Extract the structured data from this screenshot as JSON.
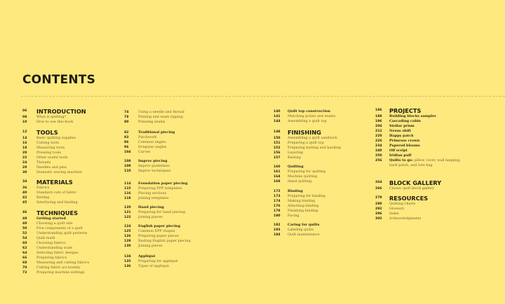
{
  "title": "CONTENTS",
  "colors": {
    "background": "#fde97d",
    "text": "#1f1c14",
    "entry": "#6e5d36"
  },
  "columns": [
    [
      {
        "heading": {
          "page": "06",
          "label": "INTRODUCTION"
        },
        "entries": [
          {
            "page": "08",
            "label": "What is quilting?"
          },
          {
            "page": "10",
            "label": "How to use this book"
          }
        ]
      },
      {
        "heading": {
          "page": "12",
          "label": "TOOLS"
        },
        "entries": [
          {
            "page": "14",
            "label": "Basic quilting supplies"
          },
          {
            "page": "16",
            "label": "Cutting tools"
          },
          {
            "page": "18",
            "label": "Measuring tools"
          },
          {
            "page": "20",
            "label": "Pressing tools"
          },
          {
            "page": "22",
            "label": "Other useful tools"
          },
          {
            "page": "24",
            "label": "Threads"
          },
          {
            "page": "28",
            "label": "Needles and pins"
          },
          {
            "page": "30",
            "label": "Domestic sewing machine"
          }
        ]
      },
      {
        "heading": {
          "page": "34",
          "label": "MATERIALS"
        },
        "entries": [
          {
            "page": "36",
            "label": "Fabrics"
          },
          {
            "page": "40",
            "label": "Standard cuts of fabric"
          },
          {
            "page": "42",
            "label": "Batting"
          },
          {
            "page": "45",
            "label": "Interfacing and binding"
          }
        ]
      },
      {
        "heading": {
          "page": "46",
          "label": "TECHNIQUES"
        },
        "entries": [
          {
            "page": "48",
            "label": "Getting started",
            "bold": true
          },
          {
            "page": "49",
            "label": "Choosing a quilt size"
          },
          {
            "page": "50",
            "label": "Five components of a quilt"
          },
          {
            "page": "52",
            "label": "Understanding quilt patterns"
          },
          {
            "page": "54",
            "label": "Quilt math"
          },
          {
            "page": "60",
            "label": "Choosing fabrics"
          },
          {
            "page": "62",
            "label": "Understanding scale"
          },
          {
            "page": "64",
            "label": "Selecting fabric designs"
          },
          {
            "page": "66",
            "label": "Preparing fabrics"
          },
          {
            "page": "68",
            "label": "Measuring and cutting fabrics"
          },
          {
            "page": "70",
            "label": "Cutting fabric accurately"
          },
          {
            "page": "72",
            "label": "Preparing machine settings"
          }
        ]
      }
    ],
    [
      {
        "entries": [
          {
            "page": "74",
            "label": "Using a needle and thread"
          },
          {
            "page": "78",
            "label": "Pinning and seam ripping"
          },
          {
            "page": "80",
            "label": "Pressing seams"
          }
        ]
      },
      {
        "entries": [
          {
            "page": "82",
            "label": "Traditional piecing",
            "bold": true
          },
          {
            "page": "83",
            "label": "Patchwork"
          },
          {
            "page": "86",
            "label": "Common angles"
          },
          {
            "page": "96",
            "label": "Irregular angles"
          },
          {
            "page": "104",
            "label": "Curves"
          }
        ]
      },
      {
        "entries": [
          {
            "page": "108",
            "label": "Improv piecing",
            "bold": true
          },
          {
            "page": "109",
            "label": "Improv guidelines"
          },
          {
            "page": "110",
            "label": "Improv techniques"
          }
        ]
      },
      {
        "entries": [
          {
            "page": "114",
            "label": "Foundation paper piecing",
            "bold": true
          },
          {
            "page": "115",
            "label": "Preparing FPP templates"
          },
          {
            "page": "116",
            "label": "Piecing sections"
          },
          {
            "page": "118",
            "label": "Joining templates"
          }
        ]
      },
      {
        "entries": [
          {
            "page": "120",
            "label": "Hand piecing",
            "bold": true
          },
          {
            "page": "121",
            "label": "Preparing for hand piecing"
          },
          {
            "page": "122",
            "label": "Joining pieces"
          }
        ]
      },
      {
        "entries": [
          {
            "page": "124",
            "label": "English paper piecing",
            "bold": true
          },
          {
            "page": "125",
            "label": "Common EPP shapes"
          },
          {
            "page": "126",
            "label": "Preparing paper pieces"
          },
          {
            "page": "128",
            "label": "Basting English paper piecing"
          },
          {
            "page": "130",
            "label": "Joining pieces"
          }
        ]
      },
      {
        "entries": [
          {
            "page": "134",
            "label": "Appliqué",
            "bold": true
          },
          {
            "page": "135",
            "label": "Preparing for appliqué"
          },
          {
            "page": "136",
            "label": "Types of appliqué"
          }
        ]
      }
    ],
    [
      {
        "entries": [
          {
            "page": "140",
            "label": "Quilt top construction",
            "bold": true
          },
          {
            "page": "141",
            "label": "Matching points and seams"
          },
          {
            "page": "144",
            "label": "Assembling a quilt top"
          }
        ]
      },
      {
        "heading": {
          "page": "148",
          "label": "FINISHING"
        },
        "entries": [
          {
            "page": "150",
            "label": "Assembling a quilt sandwich"
          },
          {
            "page": "151",
            "label": "Preparing a quilt top"
          },
          {
            "page": "152",
            "label": "Preparing batting and backing"
          },
          {
            "page": "156",
            "label": "Layering"
          },
          {
            "page": "157",
            "label": "Basting"
          }
        ]
      },
      {
        "entries": [
          {
            "page": "160",
            "label": "Quilting",
            "bold": true
          },
          {
            "page": "161",
            "label": "Preparing for quilting"
          },
          {
            "page": "164",
            "label": "Machine quilting"
          },
          {
            "page": "168",
            "label": "Hand quilting"
          }
        ]
      },
      {
        "entries": [
          {
            "page": "172",
            "label": "Binding",
            "bold": true
          },
          {
            "page": "173",
            "label": "Preparing for binding"
          },
          {
            "page": "174",
            "label": "Making binding"
          },
          {
            "page": "176",
            "label": "Attaching binding"
          },
          {
            "page": "178",
            "label": "Finishing binding"
          },
          {
            "page": "180",
            "label": "Facing"
          }
        ]
      },
      {
        "entries": [
          {
            "page": "182",
            "label": "Caring for quilts",
            "bold": true
          },
          {
            "page": "183",
            "label": "Labeling quilts"
          },
          {
            "page": "184",
            "label": "Quilt maintenance"
          }
        ]
      }
    ],
    [
      {
        "heading": {
          "page": "186",
          "label": "PROJECTS"
        },
        "entries": [
          {
            "page": "188",
            "label": "Building blocks sampler",
            "bold": true
          },
          {
            "page": "196",
            "label": "Cascading cabin",
            "bold": true
          },
          {
            "page": "204",
            "label": "Stellar prism",
            "bold": true
          },
          {
            "page": "212",
            "label": "Nexus shift",
            "bold": true
          },
          {
            "page": "220",
            "label": "Happy patch",
            "bold": true
          },
          {
            "page": "226",
            "label": "Primrose crown",
            "bold": true
          },
          {
            "page": "234",
            "label": "Papered blooms",
            "bold": true
          },
          {
            "page": "240",
            "label": "Off script",
            "bold": true
          },
          {
            "page": "250",
            "label": "Iridian puff",
            "bold": true
          },
          {
            "page": "256",
            "label": "Quilts to go:",
            "bold": true,
            "rest": " pillow cover, wall hanging,",
            "cont": "back patch, and tote bag"
          }
        ]
      },
      {
        "heading": {
          "page": "264",
          "label": "BLOCK GALLERY"
        },
        "entries": [
          {
            "page": "266",
            "label": "Classic quilt block gallery"
          }
        ]
      },
      {
        "heading": {
          "page": "278",
          "label": "RESOURCES"
        },
        "entries": [
          {
            "page": "280",
            "label": "Quilting charts"
          },
          {
            "page": "292",
            "label": "Glossary"
          },
          {
            "page": "296",
            "label": "Index"
          },
          {
            "page": "302",
            "label": "Acknowledgments"
          }
        ]
      }
    ]
  ]
}
